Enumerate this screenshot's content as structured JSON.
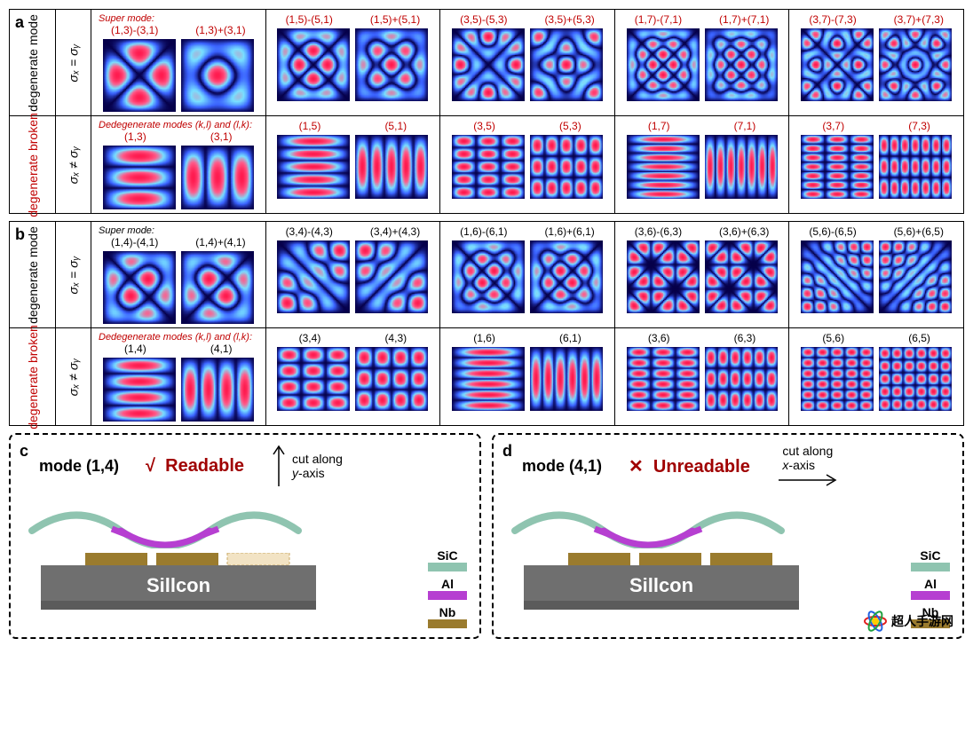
{
  "colormap": {
    "low": "#06004a",
    "mid": "#3a62ff",
    "cyan": "#79e0ff",
    "high": "#ff5b8a",
    "peak": "#ff1b4f"
  },
  "panel_a": {
    "letter": "a",
    "row1": {
      "side_label": "degenerate mode",
      "side_label_color": "#000000",
      "sigma": "σₓ = σᵧ",
      "header_prefix": "Super mode:",
      "label_color": "#c00000",
      "groups": [
        {
          "labels": [
            "(1,3)-(3,1)",
            "(1,3)+(3,1)"
          ],
          "modes": [
            {
              "k": 1,
              "l": 3,
              "op": "-"
            },
            {
              "k": 1,
              "l": 3,
              "op": "+"
            }
          ]
        },
        {
          "labels": [
            "(1,5)-(5,1)",
            "(1,5)+(5,1)"
          ],
          "modes": [
            {
              "k": 1,
              "l": 5,
              "op": "-"
            },
            {
              "k": 1,
              "l": 5,
              "op": "+"
            }
          ]
        },
        {
          "labels": [
            "(3,5)-(5,3)",
            "(3,5)+(5,3)"
          ],
          "modes": [
            {
              "k": 3,
              "l": 5,
              "op": "-"
            },
            {
              "k": 3,
              "l": 5,
              "op": "+"
            }
          ]
        },
        {
          "labels": [
            "(1,7)-(7,1)",
            "(1,7)+(7,1)"
          ],
          "modes": [
            {
              "k": 1,
              "l": 7,
              "op": "-"
            },
            {
              "k": 1,
              "l": 7,
              "op": "+"
            }
          ]
        },
        {
          "labels": [
            "(3,7)-(7,3)",
            "(3,7)+(7,3)"
          ],
          "modes": [
            {
              "k": 3,
              "l": 7,
              "op": "-"
            },
            {
              "k": 3,
              "l": 7,
              "op": "+"
            }
          ]
        }
      ]
    },
    "row2": {
      "side_label": "degenerate broken",
      "side_label_color": "#c00000",
      "sigma": "σₓ ≠ σᵧ",
      "header_prefix": "Dedegenerate modes (k,l) and (l,k):",
      "label_color": "#c00000",
      "aspect_wide": true,
      "groups": [
        {
          "labels": [
            "(1,3)",
            "(3,1)"
          ],
          "modes": [
            {
              "k": 1,
              "l": 3
            },
            {
              "k": 3,
              "l": 1
            }
          ]
        },
        {
          "labels": [
            "(1,5)",
            "(5,1)"
          ],
          "modes": [
            {
              "k": 1,
              "l": 5
            },
            {
              "k": 5,
              "l": 1
            }
          ]
        },
        {
          "labels": [
            "(3,5)",
            "(5,3)"
          ],
          "modes": [
            {
              "k": 3,
              "l": 5
            },
            {
              "k": 5,
              "l": 3
            }
          ]
        },
        {
          "labels": [
            "(1,7)",
            "(7,1)"
          ],
          "modes": [
            {
              "k": 1,
              "l": 7
            },
            {
              "k": 7,
              "l": 1
            }
          ]
        },
        {
          "labels": [
            "(3,7)",
            "(7,3)"
          ],
          "modes": [
            {
              "k": 3,
              "l": 7
            },
            {
              "k": 7,
              "l": 3
            }
          ]
        }
      ]
    }
  },
  "panel_b": {
    "letter": "b",
    "row1": {
      "side_label": "degenerate mode",
      "side_label_color": "#000000",
      "sigma": "σₓ = σᵧ",
      "header_prefix": "Super mode:",
      "label_color": "#000000",
      "groups": [
        {
          "labels": [
            "(1,4)-(4,1)",
            "(1,4)+(4,1)"
          ],
          "modes": [
            {
              "k": 1,
              "l": 4,
              "op": "-"
            },
            {
              "k": 1,
              "l": 4,
              "op": "+"
            }
          ]
        },
        {
          "labels": [
            "(3,4)-(4,3)",
            "(3,4)+(4,3)"
          ],
          "modes": [
            {
              "k": 3,
              "l": 4,
              "op": "-"
            },
            {
              "k": 3,
              "l": 4,
              "op": "+"
            }
          ]
        },
        {
          "labels": [
            "(1,6)-(6,1)",
            "(1,6)+(6,1)"
          ],
          "modes": [
            {
              "k": 1,
              "l": 6,
              "op": "-"
            },
            {
              "k": 1,
              "l": 6,
              "op": "+"
            }
          ]
        },
        {
          "labels": [
            "(3,6)-(6,3)",
            "(3,6)+(6,3)"
          ],
          "modes": [
            {
              "k": 3,
              "l": 6,
              "op": "-"
            },
            {
              "k": 3,
              "l": 6,
              "op": "+"
            }
          ]
        },
        {
          "labels": [
            "(5,6)-(6,5)",
            "(5,6)+(6,5)"
          ],
          "modes": [
            {
              "k": 5,
              "l": 6,
              "op": "-"
            },
            {
              "k": 5,
              "l": 6,
              "op": "+"
            }
          ]
        }
      ]
    },
    "row2": {
      "side_label": "degenerate broken",
      "side_label_color": "#c00000",
      "sigma": "σₓ ≠ σᵧ",
      "header_prefix": "Dedegenerate modes (k,l) and (l,k):",
      "label_color": "#000000",
      "aspect_wide": true,
      "groups": [
        {
          "labels": [
            "(1,4)",
            "(4,1)"
          ],
          "modes": [
            {
              "k": 1,
              "l": 4
            },
            {
              "k": 4,
              "l": 1
            }
          ]
        },
        {
          "labels": [
            "(3,4)",
            "(4,3)"
          ],
          "modes": [
            {
              "k": 3,
              "l": 4
            },
            {
              "k": 4,
              "l": 3
            }
          ]
        },
        {
          "labels": [
            "(1,6)",
            "(6,1)"
          ],
          "modes": [
            {
              "k": 1,
              "l": 6
            },
            {
              "k": 6,
              "l": 1
            }
          ]
        },
        {
          "labels": [
            "(3,6)",
            "(6,3)"
          ],
          "modes": [
            {
              "k": 3,
              "l": 6
            },
            {
              "k": 6,
              "l": 3
            }
          ]
        },
        {
          "labels": [
            "(5,6)",
            "(6,5)"
          ],
          "modes": [
            {
              "k": 5,
              "l": 6
            },
            {
              "k": 6,
              "l": 5
            }
          ]
        }
      ]
    }
  },
  "panel_c": {
    "letter": "c",
    "mode_label": "mode (1,4)",
    "status_symbol": "√",
    "status_text": "Readable",
    "cut_text": "cut along y-axis",
    "cut_arrow": "up",
    "colors": {
      "sic": "#8fc4b0",
      "al": "#b63fd1",
      "nb": "#9a7b2e",
      "silicon": "#6f6f6f",
      "silicon_dark": "#5b5b5b"
    },
    "silicon_label": "Sillcon",
    "nb_pads": 3,
    "nb_highlight": 2,
    "legend": [
      {
        "name": "SiC",
        "color": "#8fc4b0"
      },
      {
        "name": "Al",
        "color": "#b63fd1"
      },
      {
        "name": "Nb",
        "color": "#9a7b2e"
      }
    ]
  },
  "panel_d": {
    "letter": "d",
    "mode_label": "mode (4,1)",
    "status_symbol": "✕",
    "status_text": "Unreadable",
    "cut_text": "cut along x-axis",
    "cut_arrow": "right",
    "colors": {
      "sic": "#8fc4b0",
      "al": "#b63fd1",
      "nb": "#9a7b2e",
      "silicon": "#6f6f6f",
      "silicon_dark": "#5b5b5b"
    },
    "silicon_label": "Sillcon",
    "nb_pads": 3,
    "nb_highlight": -1,
    "legend": [
      {
        "name": "SiC",
        "color": "#8fc4b0"
      },
      {
        "name": "Al",
        "color": "#b63fd1"
      },
      {
        "name": "Nb",
        "color": "#9a7b2e"
      }
    ]
  },
  "watermark": "超人手游网"
}
